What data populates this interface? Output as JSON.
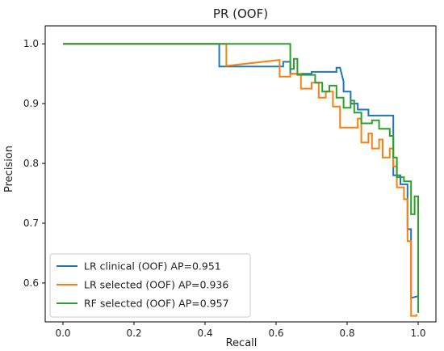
{
  "chart_data": {
    "type": "line",
    "title": "PR (OOF)",
    "xlabel": "Recall",
    "ylabel": "Precision",
    "xlim": [
      -0.05,
      1.05
    ],
    "ylim": [
      0.535,
      1.03
    ],
    "xticks": [
      0.0,
      0.2,
      0.4,
      0.6,
      0.8,
      1.0
    ],
    "xtick_labels": [
      "0.0",
      "0.2",
      "0.4",
      "0.6",
      "0.8",
      "1.0"
    ],
    "yticks": [
      0.6,
      0.7,
      0.8,
      0.9,
      1.0
    ],
    "ytick_labels": [
      "0.6",
      "0.7",
      "0.8",
      "0.9",
      "1.0"
    ],
    "grid": false,
    "legend_position": "lower-left",
    "series": [
      {
        "name": "LR clinical (OOF) AP=0.951",
        "color": "#1f77b4",
        "points": [
          [
            0.0,
            1.0
          ],
          [
            0.44,
            1.0
          ],
          [
            0.44,
            0.962
          ],
          [
            0.62,
            0.962
          ],
          [
            0.62,
            0.97
          ],
          [
            0.64,
            0.97
          ],
          [
            0.64,
            0.95
          ],
          [
            0.7,
            0.95
          ],
          [
            0.7,
            0.953
          ],
          [
            0.77,
            0.953
          ],
          [
            0.77,
            0.96
          ],
          [
            0.78,
            0.96
          ],
          [
            0.79,
            0.937
          ],
          [
            0.79,
            0.92
          ],
          [
            0.81,
            0.92
          ],
          [
            0.81,
            0.9
          ],
          [
            0.83,
            0.9
          ],
          [
            0.83,
            0.89
          ],
          [
            0.86,
            0.89
          ],
          [
            0.86,
            0.88
          ],
          [
            0.9,
            0.88
          ],
          [
            0.92,
            0.88
          ],
          [
            0.93,
            0.88
          ],
          [
            0.93,
            0.78
          ],
          [
            0.95,
            0.78
          ],
          [
            0.95,
            0.765
          ],
          [
            0.97,
            0.765
          ],
          [
            0.97,
            0.69
          ],
          [
            0.98,
            0.69
          ],
          [
            0.98,
            0.575
          ],
          [
            1.0,
            0.578
          ]
        ]
      },
      {
        "name": "LR selected (OOF) AP=0.936",
        "color": "#ff7f0e",
        "points": [
          [
            0.0,
            1.0
          ],
          [
            0.46,
            1.0
          ],
          [
            0.46,
            0.963
          ],
          [
            0.61,
            0.973
          ],
          [
            0.61,
            0.945
          ],
          [
            0.64,
            0.945
          ],
          [
            0.64,
            0.95
          ],
          [
            0.67,
            0.95
          ],
          [
            0.67,
            0.925
          ],
          [
            0.7,
            0.925
          ],
          [
            0.7,
            0.935
          ],
          [
            0.72,
            0.935
          ],
          [
            0.72,
            0.91
          ],
          [
            0.74,
            0.91
          ],
          [
            0.74,
            0.92
          ],
          [
            0.76,
            0.92
          ],
          [
            0.76,
            0.895
          ],
          [
            0.78,
            0.895
          ],
          [
            0.78,
            0.86
          ],
          [
            0.83,
            0.86
          ],
          [
            0.83,
            0.875
          ],
          [
            0.84,
            0.875
          ],
          [
            0.84,
            0.835
          ],
          [
            0.86,
            0.835
          ],
          [
            0.86,
            0.85
          ],
          [
            0.87,
            0.85
          ],
          [
            0.87,
            0.825
          ],
          [
            0.89,
            0.825
          ],
          [
            0.89,
            0.84
          ],
          [
            0.9,
            0.84
          ],
          [
            0.9,
            0.81
          ],
          [
            0.92,
            0.81
          ],
          [
            0.92,
            0.825
          ],
          [
            0.93,
            0.825
          ],
          [
            0.93,
            0.795
          ],
          [
            0.94,
            0.795
          ],
          [
            0.94,
            0.76
          ],
          [
            0.96,
            0.76
          ],
          [
            0.96,
            0.74
          ],
          [
            0.97,
            0.74
          ],
          [
            0.97,
            0.67
          ],
          [
            0.98,
            0.67
          ],
          [
            0.98,
            0.545
          ],
          [
            0.995,
            0.545
          ],
          [
            0.995,
            0.548
          ]
        ]
      },
      {
        "name": "RF selected (OOF) AP=0.957",
        "color": "#2ca02c",
        "points": [
          [
            0.0,
            1.0
          ],
          [
            0.64,
            1.0
          ],
          [
            0.64,
            0.958
          ],
          [
            0.65,
            0.958
          ],
          [
            0.65,
            0.975
          ],
          [
            0.66,
            0.975
          ],
          [
            0.66,
            0.948
          ],
          [
            0.71,
            0.948
          ],
          [
            0.71,
            0.935
          ],
          [
            0.73,
            0.935
          ],
          [
            0.73,
            0.92
          ],
          [
            0.75,
            0.92
          ],
          [
            0.75,
            0.93
          ],
          [
            0.77,
            0.93
          ],
          [
            0.77,
            0.91
          ],
          [
            0.79,
            0.91
          ],
          [
            0.79,
            0.893
          ],
          [
            0.81,
            0.893
          ],
          [
            0.81,
            0.905
          ],
          [
            0.82,
            0.905
          ],
          [
            0.82,
            0.885
          ],
          [
            0.84,
            0.885
          ],
          [
            0.84,
            0.867
          ],
          [
            0.87,
            0.867
          ],
          [
            0.87,
            0.872
          ],
          [
            0.89,
            0.872
          ],
          [
            0.89,
            0.858
          ],
          [
            0.92,
            0.858
          ],
          [
            0.92,
            0.846
          ],
          [
            0.93,
            0.846
          ],
          [
            0.93,
            0.81
          ],
          [
            0.94,
            0.81
          ],
          [
            0.94,
            0.777
          ],
          [
            0.96,
            0.777
          ],
          [
            0.96,
            0.77
          ],
          [
            0.98,
            0.77
          ],
          [
            0.98,
            0.715
          ],
          [
            0.99,
            0.715
          ],
          [
            0.99,
            0.745
          ],
          [
            1.0,
            0.745
          ],
          [
            1.0,
            0.55
          ]
        ]
      }
    ]
  }
}
